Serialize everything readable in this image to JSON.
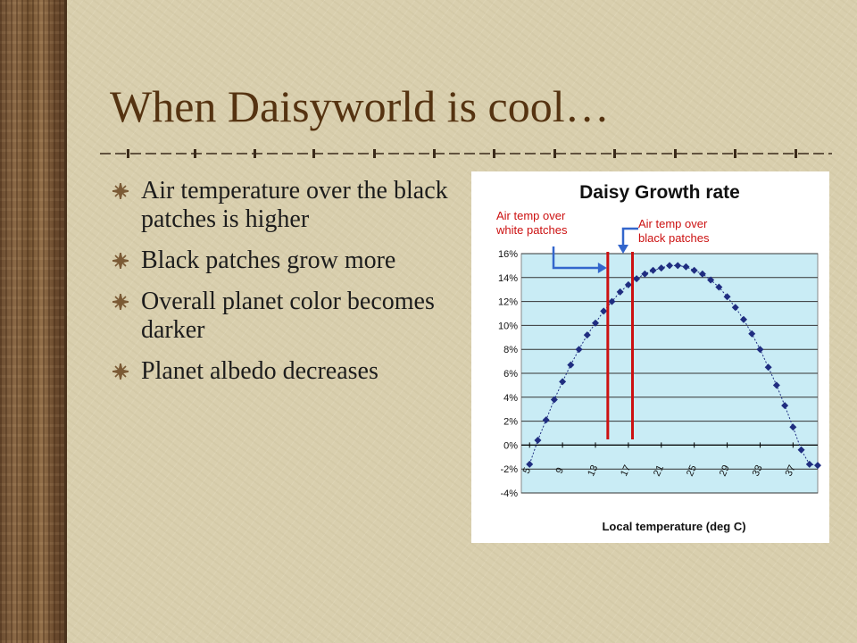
{
  "slide": {
    "title": "When Daisyworld is cool…",
    "bullets": [
      "Air temperature over the black patches is higher",
      "Black patches grow more",
      "Overall planet color becomes darker",
      "Planet albedo decreases"
    ]
  },
  "colors": {
    "title": "#553311",
    "plot_background": "#c9ecf5",
    "marker": "#1f2d80",
    "reference_lines": "#cc1111",
    "annotation_arrows": "#3366cc"
  },
  "chart_data": {
    "type": "line",
    "title": "Daisy Growth rate",
    "xlabel": "Local temperature (deg C)",
    "ylabel": "",
    "x_tick_labels": [
      "5",
      "9",
      "13",
      "17",
      "21",
      "25",
      "29",
      "33",
      "37"
    ],
    "y_tick_labels": [
      "16%",
      "14%",
      "12%",
      "10%",
      "8%",
      "6%",
      "4%",
      "2%",
      "0%",
      "-2%",
      "-4%"
    ],
    "xlim": [
      4,
      40
    ],
    "ylim": [
      -4,
      16
    ],
    "grid": true,
    "series": [
      {
        "marker": "diamond",
        "x": [
          5,
          6,
          7,
          8,
          9,
          10,
          11,
          12,
          13,
          14,
          15,
          16,
          17,
          18,
          19,
          20,
          21,
          22,
          23,
          24,
          25,
          26,
          27,
          28,
          29,
          30,
          31,
          32,
          33,
          34,
          35,
          36,
          37,
          38,
          39,
          40
        ],
        "y": [
          -1.6,
          0.4,
          2.1,
          3.8,
          5.3,
          6.7,
          8.0,
          9.2,
          10.2,
          11.2,
          12.0,
          12.8,
          13.4,
          13.9,
          14.3,
          14.6,
          14.8,
          15.0,
          15.0,
          14.9,
          14.6,
          14.3,
          13.8,
          13.2,
          12.4,
          11.5,
          10.5,
          9.3,
          8.0,
          6.5,
          5.0,
          3.3,
          1.5,
          -0.4,
          -1.6,
          -1.7
        ]
      }
    ],
    "reference_lines": [
      {
        "label": "Air temp over white patches",
        "x": 14.5
      },
      {
        "label": "Air temp over black patches",
        "x": 17.5
      }
    ]
  }
}
